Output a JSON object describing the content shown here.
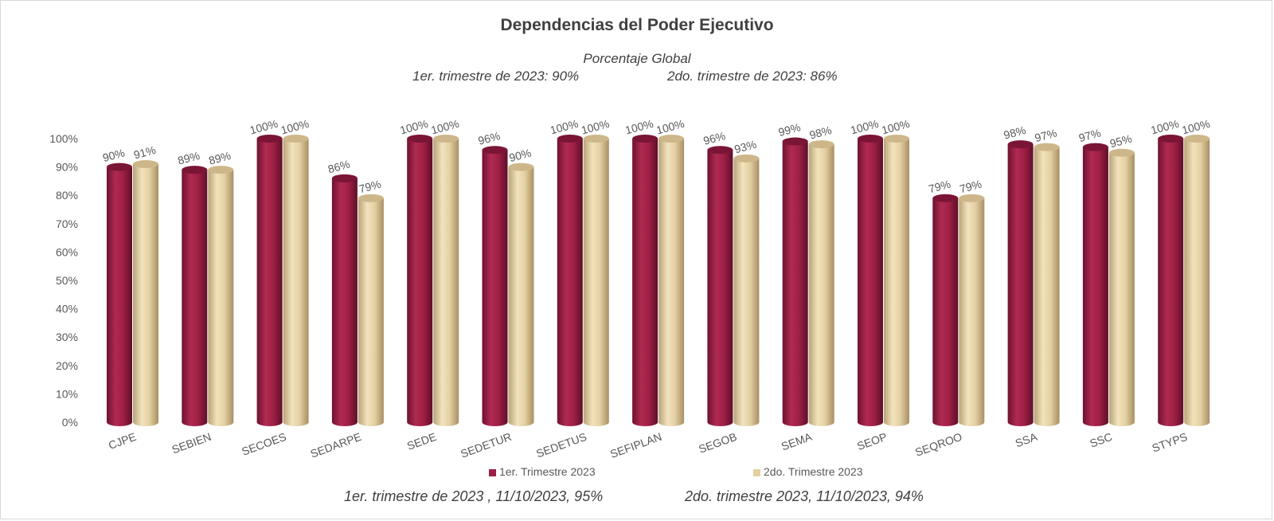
{
  "title": "Dependencias del Poder Ejecutivo",
  "subtitle": "Porcentaje Global",
  "sub_q1": "1er. trimestre de 2023: 90%",
  "sub_q2": "2do. trimestre de 2023: 86%",
  "footer_q1": "1er. trimestre de 2023 , 11/10/2023, 95%",
  "footer_q2": "2do. trimestre 2023, 11/10/2023, 94%",
  "colors": {
    "series1": "#9e1f45",
    "series2": "#e3cfa2"
  },
  "chart_data": {
    "type": "bar",
    "title": "Dependencias del Poder Ejecutivo",
    "xlabel": "",
    "ylabel": "",
    "ylim": [
      0,
      100
    ],
    "yticks": [
      "0%",
      "10%",
      "20%",
      "30%",
      "40%",
      "50%",
      "60%",
      "70%",
      "80%",
      "90%",
      "100%"
    ],
    "legend_position": "bottom",
    "categories": [
      "CJPE",
      "SEBIEN",
      "SECOES",
      "SEDARPE",
      "SEDE",
      "SEDETUR",
      "SEDETUS",
      "SEFIPLAN",
      "SEGOB",
      "SEMA",
      "SEOP",
      "SEQROO",
      "SSA",
      "SSC",
      "STYPS"
    ],
    "series": [
      {
        "name": "1er. Trimestre 2023",
        "values": [
          90,
          89,
          100,
          86,
          100,
          96,
          100,
          100,
          96,
          99,
          100,
          79,
          98,
          97,
          100
        ],
        "labels": [
          "90%",
          "89%",
          "100%",
          "86%",
          "100%",
          "96%",
          "100%",
          "100%",
          "96%",
          "99%",
          "100%",
          "79%",
          "98%",
          "97%",
          "100%"
        ]
      },
      {
        "name": "2do. Trimestre 2023",
        "values": [
          91,
          89,
          100,
          79,
          100,
          90,
          100,
          100,
          93,
          98,
          100,
          79,
          97,
          95,
          100
        ],
        "labels": [
          "91%",
          "89%",
          "100%",
          "79%",
          "100%",
          "90%",
          "100%",
          "100%",
          "93%",
          "98%",
          "100%",
          "79%",
          "97%",
          "95%",
          "100%"
        ]
      }
    ]
  }
}
